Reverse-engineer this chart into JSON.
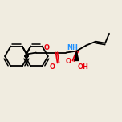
{
  "bg_color": "#f0ece0",
  "line_color": "#000000",
  "o_color": "#e8000d",
  "n_color": "#1e90ff",
  "bond_width": 1.3,
  "fig_size": [
    1.52,
    1.52
  ],
  "dpi": 100,
  "xlim": [
    0,
    152
  ],
  "ylim": [
    0,
    152
  ]
}
